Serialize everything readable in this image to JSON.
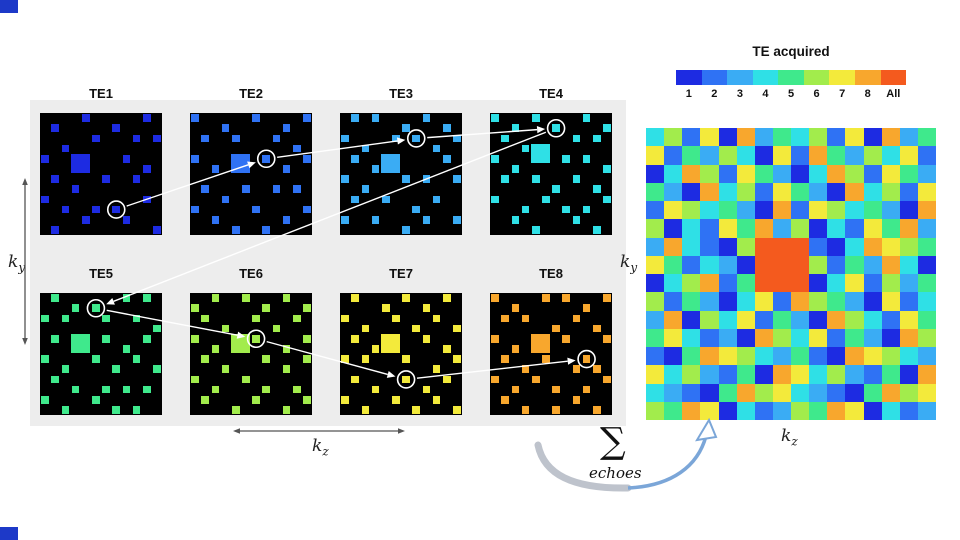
{
  "page": {
    "bg": "#ffffff",
    "panel_bg": "#ededed",
    "corner_color": "#1d39c8",
    "square_bg": "#000000",
    "annotation": {
      "arrow_white": "#ffffff",
      "axis_color": "#555555",
      "swoosh_gray": "#b7bdc7",
      "swoosh_blue": "#7ba6d8"
    }
  },
  "axes": {
    "ky": {
      "base": "k",
      "sub": "y"
    },
    "kz": {
      "base": "k",
      "sub": "z"
    }
  },
  "colorbar": {
    "title": "TE acquired",
    "ticks": [
      "1",
      "2",
      "3",
      "4",
      "5",
      "6",
      "7",
      "8",
      "All"
    ],
    "colors": [
      "#1d2be2",
      "#2f72f4",
      "#3aacf4",
      "#2fe0e6",
      "#3fe98c",
      "#a2ec4c",
      "#f3ea3b",
      "#f8a72d",
      "#f45a1e"
    ]
  },
  "te_panels": [
    {
      "label": "TE1",
      "color": "#1d2be2",
      "blob": {
        "col": 3,
        "row": 4,
        "span": 2
      },
      "circle": [
        7,
        9
      ],
      "dots": [
        [
          1,
          1
        ],
        [
          4,
          0
        ],
        [
          7,
          1
        ],
        [
          10,
          0
        ],
        [
          2,
          3
        ],
        [
          5,
          2
        ],
        [
          9,
          2
        ],
        [
          11,
          2
        ],
        [
          0,
          4
        ],
        [
          8,
          4
        ],
        [
          10,
          5
        ],
        [
          1,
          6
        ],
        [
          3,
          7
        ],
        [
          6,
          6
        ],
        [
          9,
          6
        ],
        [
          0,
          8
        ],
        [
          2,
          9
        ],
        [
          5,
          9
        ],
        [
          7,
          9
        ],
        [
          10,
          8
        ],
        [
          1,
          11
        ],
        [
          4,
          10
        ],
        [
          8,
          10
        ],
        [
          11,
          11
        ]
      ]
    },
    {
      "label": "TE2",
      "color": "#2f72f4",
      "blob": {
        "col": 4,
        "row": 4,
        "span": 2
      },
      "circle": [
        7,
        4
      ],
      "dots": [
        [
          0,
          0
        ],
        [
          3,
          1
        ],
        [
          6,
          0
        ],
        [
          9,
          1
        ],
        [
          11,
          0
        ],
        [
          1,
          2
        ],
        [
          4,
          2
        ],
        [
          8,
          2
        ],
        [
          10,
          3
        ],
        [
          0,
          4
        ],
        [
          2,
          5
        ],
        [
          7,
          4
        ],
        [
          9,
          5
        ],
        [
          11,
          4
        ],
        [
          1,
          7
        ],
        [
          3,
          8
        ],
        [
          5,
          7
        ],
        [
          8,
          7
        ],
        [
          10,
          7
        ],
        [
          0,
          9
        ],
        [
          2,
          10
        ],
        [
          6,
          9
        ],
        [
          9,
          10
        ],
        [
          11,
          9
        ],
        [
          4,
          11
        ],
        [
          7,
          11
        ]
      ]
    },
    {
      "label": "TE3",
      "color": "#3aacf4",
      "blob": {
        "col": 4,
        "row": 4,
        "span": 2
      },
      "circle": [
        7,
        2
      ],
      "dots": [
        [
          1,
          0
        ],
        [
          3,
          0
        ],
        [
          6,
          1
        ],
        [
          8,
          0
        ],
        [
          10,
          1
        ],
        [
          0,
          2
        ],
        [
          2,
          3
        ],
        [
          5,
          2
        ],
        [
          7,
          2
        ],
        [
          9,
          3
        ],
        [
          11,
          2
        ],
        [
          1,
          4
        ],
        [
          3,
          5
        ],
        [
          10,
          4
        ],
        [
          0,
          6
        ],
        [
          2,
          7
        ],
        [
          6,
          6
        ],
        [
          8,
          6
        ],
        [
          11,
          6
        ],
        [
          1,
          8
        ],
        [
          4,
          8
        ],
        [
          7,
          9
        ],
        [
          9,
          8
        ],
        [
          0,
          10
        ],
        [
          3,
          10
        ],
        [
          6,
          11
        ],
        [
          8,
          10
        ],
        [
          11,
          10
        ]
      ]
    },
    {
      "label": "TE4",
      "color": "#2fe0e6",
      "blob": {
        "col": 4,
        "row": 3,
        "span": 2
      },
      "circle": [
        6,
        1
      ],
      "dots": [
        [
          0,
          0
        ],
        [
          2,
          1
        ],
        [
          4,
          0
        ],
        [
          6,
          1
        ],
        [
          9,
          0
        ],
        [
          11,
          1
        ],
        [
          1,
          2
        ],
        [
          3,
          3
        ],
        [
          8,
          2
        ],
        [
          10,
          2
        ],
        [
          0,
          4
        ],
        [
          2,
          5
        ],
        [
          7,
          4
        ],
        [
          9,
          4
        ],
        [
          11,
          5
        ],
        [
          1,
          6
        ],
        [
          4,
          6
        ],
        [
          6,
          7
        ],
        [
          8,
          6
        ],
        [
          10,
          7
        ],
        [
          0,
          8
        ],
        [
          3,
          9
        ],
        [
          5,
          8
        ],
        [
          7,
          9
        ],
        [
          9,
          9
        ],
        [
          11,
          8
        ],
        [
          2,
          10
        ],
        [
          4,
          11
        ],
        [
          8,
          10
        ],
        [
          10,
          11
        ]
      ]
    },
    {
      "label": "TE5",
      "color": "#3fe98c",
      "blob": {
        "col": 3,
        "row": 4,
        "span": 2
      },
      "circle": [
        5,
        1
      ],
      "dots": [
        [
          1,
          0
        ],
        [
          3,
          1
        ],
        [
          5,
          1
        ],
        [
          8,
          0
        ],
        [
          10,
          0
        ],
        [
          0,
          2
        ],
        [
          2,
          2
        ],
        [
          6,
          2
        ],
        [
          9,
          2
        ],
        [
          11,
          3
        ],
        [
          1,
          4
        ],
        [
          6,
          4
        ],
        [
          8,
          5
        ],
        [
          10,
          4
        ],
        [
          0,
          6
        ],
        [
          2,
          7
        ],
        [
          5,
          6
        ],
        [
          7,
          7
        ],
        [
          9,
          6
        ],
        [
          11,
          7
        ],
        [
          1,
          8
        ],
        [
          3,
          9
        ],
        [
          6,
          9
        ],
        [
          8,
          9
        ],
        [
          10,
          9
        ],
        [
          0,
          10
        ],
        [
          2,
          11
        ],
        [
          5,
          10
        ],
        [
          7,
          11
        ],
        [
          9,
          11
        ]
      ]
    },
    {
      "label": "TE6",
      "color": "#a2ec4c",
      "blob": {
        "col": 4,
        "row": 4,
        "span": 2
      },
      "circle": [
        6,
        4
      ],
      "dots": [
        [
          0,
          1
        ],
        [
          2,
          0
        ],
        [
          5,
          0
        ],
        [
          7,
          1
        ],
        [
          9,
          0
        ],
        [
          11,
          1
        ],
        [
          1,
          2
        ],
        [
          3,
          3
        ],
        [
          6,
          2
        ],
        [
          8,
          3
        ],
        [
          10,
          2
        ],
        [
          0,
          4
        ],
        [
          2,
          5
        ],
        [
          6,
          4
        ],
        [
          9,
          5
        ],
        [
          11,
          4
        ],
        [
          1,
          6
        ],
        [
          3,
          7
        ],
        [
          7,
          6
        ],
        [
          9,
          7
        ],
        [
          11,
          6
        ],
        [
          0,
          8
        ],
        [
          2,
          9
        ],
        [
          5,
          8
        ],
        [
          7,
          9
        ],
        [
          10,
          9
        ],
        [
          1,
          10
        ],
        [
          4,
          11
        ],
        [
          6,
          10
        ],
        [
          9,
          11
        ],
        [
          11,
          10
        ]
      ]
    },
    {
      "label": "TE7",
      "color": "#f3ea3b",
      "blob": {
        "col": 4,
        "row": 4,
        "span": 2
      },
      "circle": [
        6,
        8
      ],
      "dots": [
        [
          1,
          0
        ],
        [
          4,
          1
        ],
        [
          6,
          0
        ],
        [
          8,
          1
        ],
        [
          10,
          0
        ],
        [
          0,
          2
        ],
        [
          2,
          3
        ],
        [
          5,
          2
        ],
        [
          7,
          3
        ],
        [
          9,
          2
        ],
        [
          11,
          3
        ],
        [
          1,
          4
        ],
        [
          3,
          5
        ],
        [
          8,
          4
        ],
        [
          10,
          5
        ],
        [
          0,
          6
        ],
        [
          2,
          6
        ],
        [
          6,
          6
        ],
        [
          9,
          7
        ],
        [
          11,
          6
        ],
        [
          1,
          8
        ],
        [
          3,
          9
        ],
        [
          6,
          8
        ],
        [
          8,
          9
        ],
        [
          10,
          8
        ],
        [
          0,
          10
        ],
        [
          2,
          11
        ],
        [
          5,
          10
        ],
        [
          7,
          11
        ],
        [
          9,
          10
        ],
        [
          11,
          11
        ]
      ]
    },
    {
      "label": "TE8",
      "color": "#f8a72d",
      "blob": {
        "col": 4,
        "row": 4,
        "span": 2
      },
      "circle": [
        9,
        6
      ],
      "dots": [
        [
          0,
          0
        ],
        [
          2,
          1
        ],
        [
          5,
          0
        ],
        [
          7,
          0
        ],
        [
          9,
          1
        ],
        [
          11,
          0
        ],
        [
          1,
          2
        ],
        [
          3,
          2
        ],
        [
          6,
          3
        ],
        [
          8,
          2
        ],
        [
          10,
          3
        ],
        [
          0,
          4
        ],
        [
          2,
          5
        ],
        [
          7,
          4
        ],
        [
          9,
          6
        ],
        [
          11,
          4
        ],
        [
          1,
          6
        ],
        [
          3,
          7
        ],
        [
          5,
          6
        ],
        [
          8,
          7
        ],
        [
          10,
          7
        ],
        [
          0,
          8
        ],
        [
          2,
          9
        ],
        [
          4,
          8
        ],
        [
          6,
          9
        ],
        [
          9,
          9
        ],
        [
          11,
          8
        ],
        [
          1,
          10
        ],
        [
          3,
          11
        ],
        [
          6,
          11
        ],
        [
          8,
          10
        ],
        [
          10,
          11
        ]
      ]
    }
  ],
  "mosaic": {
    "rows": [
      "4627183546271835",
      "7253641728536472",
      "1486275314862753",
      "5318462753184627",
      "2764531827645318",
      "6142758361427583",
      "3842169992148765",
      "7524319996253841",
      "1468259991472635",
      "6253147286531724",
      "3816472531864275",
      "5742318647253186",
      "2158764352187643",
      "7463251874632518",
      "4321586743215867",
      "6587142365871423"
    ]
  },
  "sum": {
    "symbol": "∑",
    "label": "echoes"
  }
}
